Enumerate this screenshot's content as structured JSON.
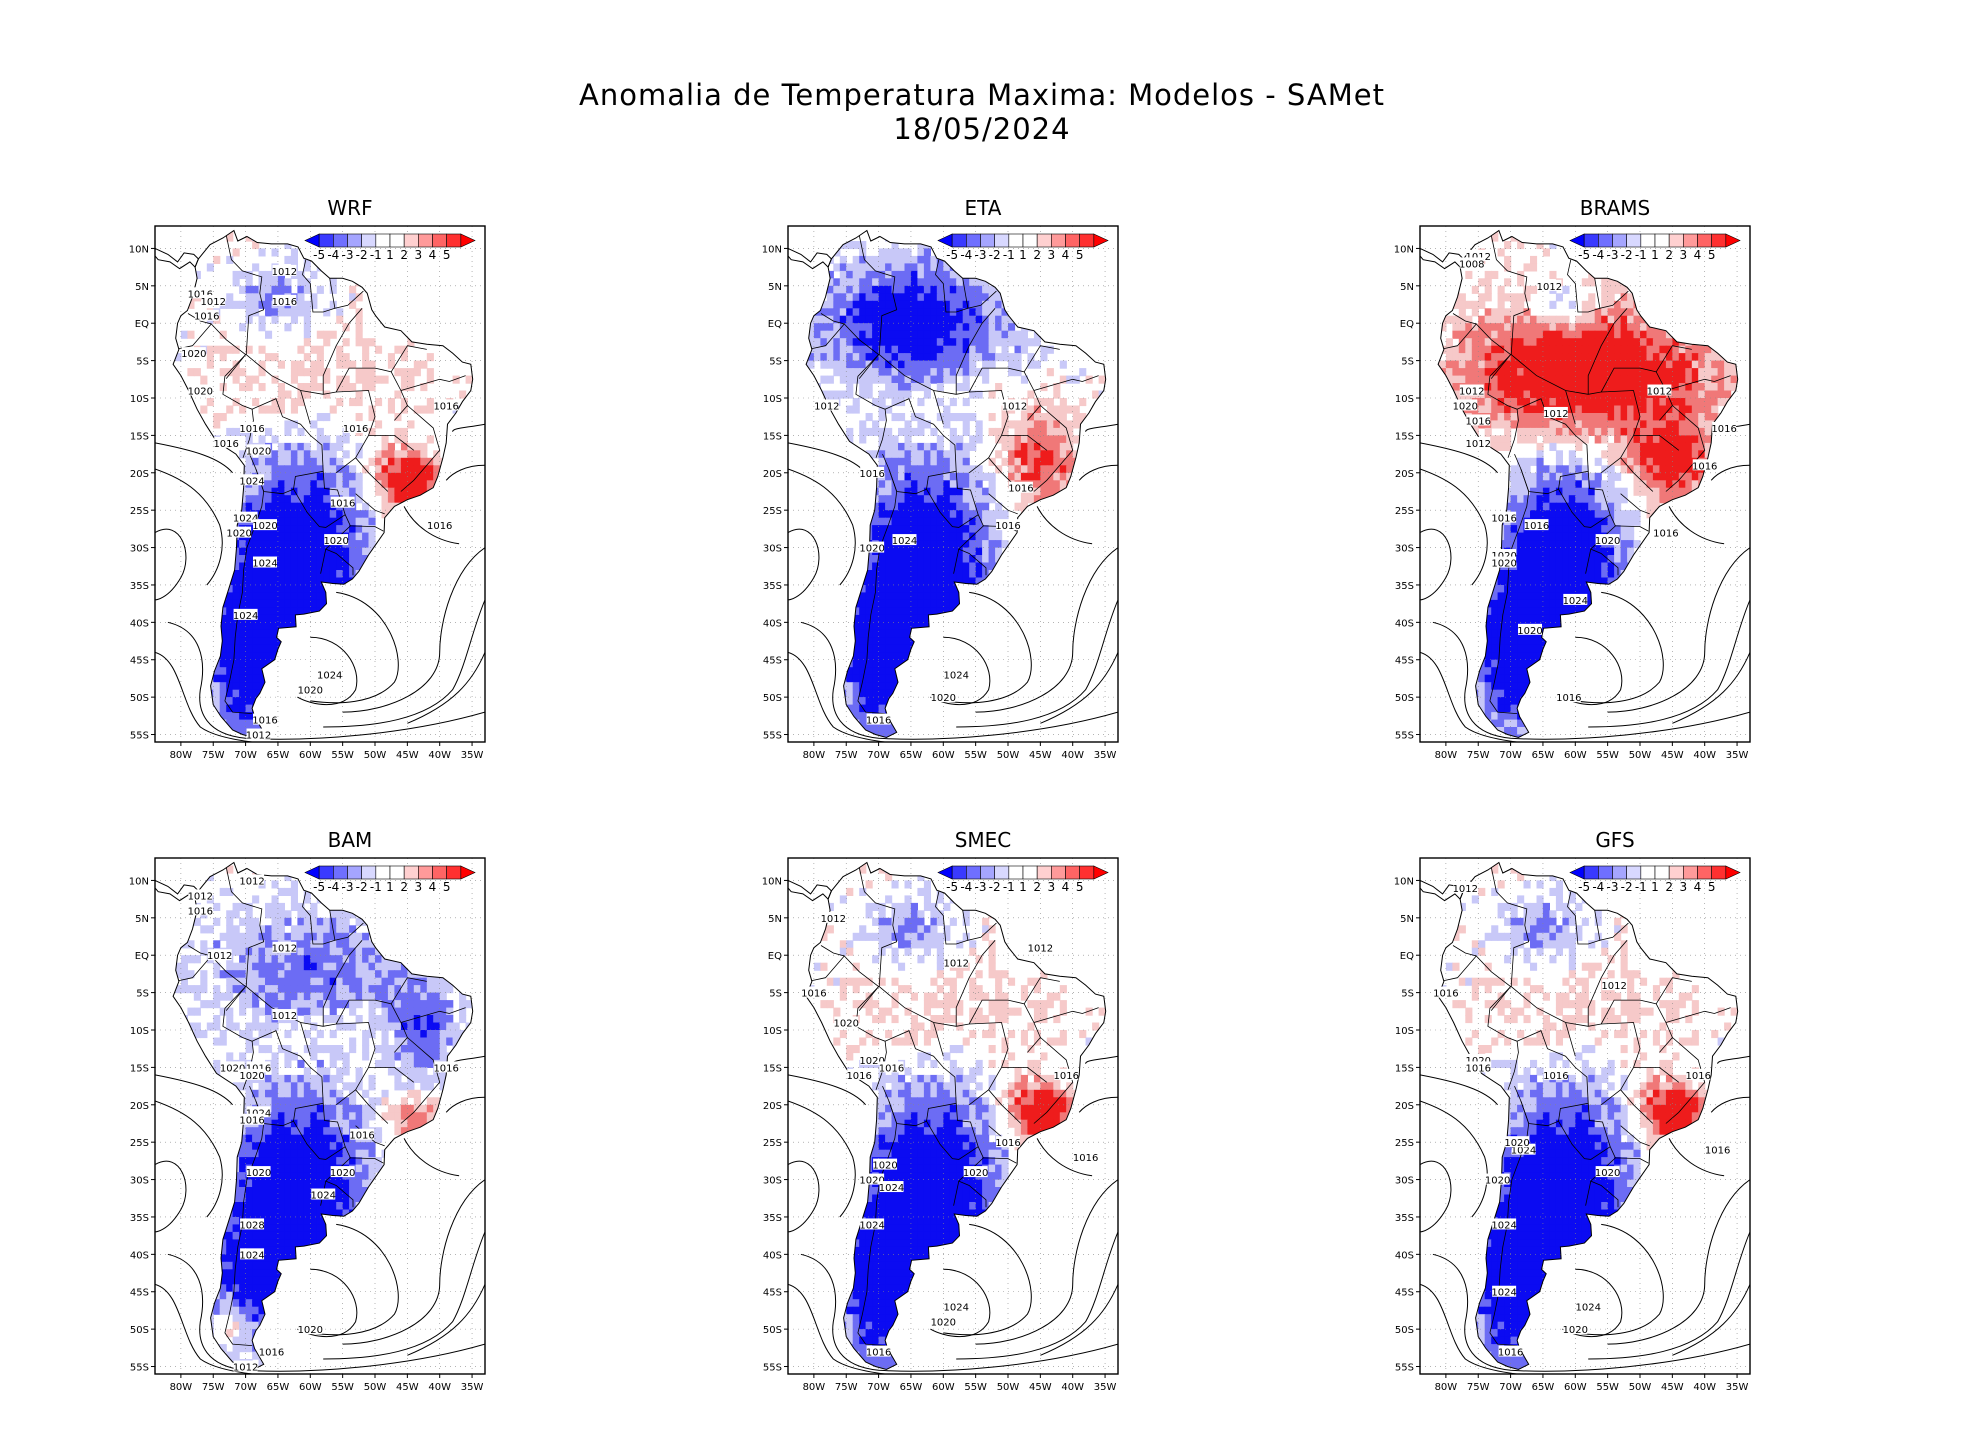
{
  "figure": {
    "title_line1": "Anomalia de Temperatura Maxima: Modelos - SAMet",
    "title_line2": "18/05/2024"
  },
  "axes": {
    "lat_ticks": [
      "10N",
      "5N",
      "EQ",
      "5S",
      "10S",
      "15S",
      "20S",
      "25S",
      "30S",
      "35S",
      "40S",
      "45S",
      "50S",
      "55S"
    ],
    "lon_ticks": [
      "80W",
      "75W",
      "70W",
      "65W",
      "60W",
      "55W",
      "50W",
      "45W",
      "40W",
      "35W"
    ]
  },
  "colorbar": {
    "labels": [
      "-5",
      "-4",
      "-3",
      "-2",
      "-1",
      "1",
      "2",
      "3",
      "4",
      "5"
    ],
    "colors": [
      "#0000ff",
      "#3a3aff",
      "#6f6fff",
      "#a5a5ff",
      "#d8d8ff",
      "#ffffff",
      "#ffffff",
      "#ffd0d0",
      "#ff9a9a",
      "#ff6464",
      "#ff3030",
      "#ff0000"
    ]
  },
  "colors": {
    "cold_strong": "#0b0bf2",
    "cold_mid": "#6c6cf4",
    "cold_light": "#c8c8f8",
    "warm_light": "#f6c9c9",
    "warm_mid": "#f07878",
    "warm_strong": "#ee1c1c"
  },
  "panels": [
    {
      "name": "WRF",
      "pattern": "south-cold-southeast-warm",
      "isobars": [
        {
          "label": "1012",
          "lon": -64,
          "lat": 7
        },
        {
          "label": "1016",
          "lon": -64,
          "lat": 3
        },
        {
          "label": "1016",
          "lon": -77,
          "lat": 4
        },
        {
          "label": "1012",
          "lon": -75,
          "lat": 3
        },
        {
          "label": "1016",
          "lon": -76,
          "lat": 1
        },
        {
          "label": "1020",
          "lon": -78,
          "lat": -4
        },
        {
          "label": "1020",
          "lon": -77,
          "lat": -9
        },
        {
          "label": "1016",
          "lon": -39,
          "lat": -11
        },
        {
          "label": "1016",
          "lon": -53,
          "lat": -14
        },
        {
          "label": "1016",
          "lon": -69,
          "lat": -14
        },
        {
          "label": "1016",
          "lon": -73,
          "lat": -16
        },
        {
          "label": "1020",
          "lon": -68,
          "lat": -17
        },
        {
          "label": "1024",
          "lon": -69,
          "lat": -21
        },
        {
          "label": "1016",
          "lon": -55,
          "lat": -24
        },
        {
          "label": "1016",
          "lon": -40,
          "lat": -27
        },
        {
          "label": "1024",
          "lon": -70,
          "lat": -26
        },
        {
          "label": "1020",
          "lon": -67,
          "lat": -27
        },
        {
          "label": "1020",
          "lon": -71,
          "lat": -28
        },
        {
          "label": "1020",
          "lon": -56,
          "lat": -29
        },
        {
          "label": "1024",
          "lon": -67,
          "lat": -32
        },
        {
          "label": "1024",
          "lon": -70,
          "lat": -39
        },
        {
          "label": "1024",
          "lon": -57,
          "lat": -47
        },
        {
          "label": "1020",
          "lon": -60,
          "lat": -49
        },
        {
          "label": "1016",
          "lon": -67,
          "lat": -53
        },
        {
          "label": "1012",
          "lon": -68,
          "lat": -55
        }
      ]
    },
    {
      "name": "ETA",
      "pattern": "north-cold-south-cold-east-warm",
      "isobars": [
        {
          "label": "1012",
          "lon": -78,
          "lat": -11
        },
        {
          "label": "1012",
          "lon": -49,
          "lat": -11
        },
        {
          "label": "1016",
          "lon": -71,
          "lat": -20
        },
        {
          "label": "1016",
          "lon": -48,
          "lat": -22
        },
        {
          "label": "1016",
          "lon": -50,
          "lat": -27
        },
        {
          "label": "1024",
          "lon": -66,
          "lat": -29
        },
        {
          "label": "1020",
          "lon": -71,
          "lat": -30
        },
        {
          "label": "1024",
          "lon": -58,
          "lat": -47
        },
        {
          "label": "1020",
          "lon": -60,
          "lat": -50
        },
        {
          "label": "1016",
          "lon": -70,
          "lat": -53
        }
      ]
    },
    {
      "name": "BRAMS",
      "pattern": "north-warm-south-cold",
      "isobars": [
        {
          "label": "1012",
          "lon": -75,
          "lat": 9
        },
        {
          "label": "1008",
          "lon": -76,
          "lat": 8
        },
        {
          "label": "1012",
          "lon": -64,
          "lat": 5
        },
        {
          "label": "1012",
          "lon": -76,
          "lat": -9
        },
        {
          "label": "1020",
          "lon": -77,
          "lat": -11
        },
        {
          "label": "1016",
          "lon": -75,
          "lat": -13
        },
        {
          "label": "1012",
          "lon": -63,
          "lat": -12
        },
        {
          "label": "1012",
          "lon": -47,
          "lat": -9
        },
        {
          "label": "1016",
          "lon": -37,
          "lat": -14
        },
        {
          "label": "1012",
          "lon": -75,
          "lat": -16
        },
        {
          "label": "1016",
          "lon": -40,
          "lat": -19
        },
        {
          "label": "1016",
          "lon": -71,
          "lat": -26
        },
        {
          "label": "1016",
          "lon": -66,
          "lat": -27
        },
        {
          "label": "1016",
          "lon": -46,
          "lat": -28
        },
        {
          "label": "1020",
          "lon": -55,
          "lat": -29
        },
        {
          "label": "1020",
          "lon": -71,
          "lat": -31
        },
        {
          "label": "1020",
          "lon": -71,
          "lat": -32
        },
        {
          "label": "1024",
          "lon": -60,
          "lat": -37
        },
        {
          "label": "1020",
          "lon": -67,
          "lat": -41
        },
        {
          "label": "1016",
          "lon": -61,
          "lat": -50
        }
      ]
    },
    {
      "name": "BAM",
      "pattern": "mixed-north-cold-south-cold",
      "isobars": [
        {
          "label": "1012",
          "lon": -69,
          "lat": 10
        },
        {
          "label": "1012",
          "lon": -77,
          "lat": 8
        },
        {
          "label": "1016",
          "lon": -77,
          "lat": 6
        },
        {
          "label": "1012",
          "lon": -64,
          "lat": 1
        },
        {
          "label": "1012",
          "lon": -74,
          "lat": 0
        },
        {
          "label": "1012",
          "lon": -64,
          "lat": -8
        },
        {
          "label": "1016",
          "lon": -68,
          "lat": -15
        },
        {
          "label": "1020",
          "lon": -72,
          "lat": -15
        },
        {
          "label": "1020",
          "lon": -69,
          "lat": -16
        },
        {
          "label": "1016",
          "lon": -39,
          "lat": -15
        },
        {
          "label": "1024",
          "lon": -68,
          "lat": -21
        },
        {
          "label": "1016",
          "lon": -69,
          "lat": -22
        },
        {
          "label": "1016",
          "lon": -52,
          "lat": -24
        },
        {
          "label": "1020",
          "lon": -68,
          "lat": -29
        },
        {
          "label": "1020",
          "lon": -55,
          "lat": -29
        },
        {
          "label": "1024",
          "lon": -58,
          "lat": -32
        },
        {
          "label": "1028",
          "lon": -69,
          "lat": -36
        },
        {
          "label": "1024",
          "lon": -69,
          "lat": -40
        },
        {
          "label": "1020",
          "lon": -60,
          "lat": -50
        },
        {
          "label": "1016",
          "lon": -66,
          "lat": -53
        },
        {
          "label": "1012",
          "lon": -70,
          "lat": -55
        }
      ]
    },
    {
      "name": "SMEC",
      "pattern": "south-cold-southeast-warm",
      "isobars": [
        {
          "label": "1012",
          "lon": -77,
          "lat": 5
        },
        {
          "label": "1012",
          "lon": -45,
          "lat": 1
        },
        {
          "label": "1012",
          "lon": -58,
          "lat": -1
        },
        {
          "label": "1016",
          "lon": -80,
          "lat": -5
        },
        {
          "label": "1020",
          "lon": -75,
          "lat": -9
        },
        {
          "label": "1020",
          "lon": -71,
          "lat": -14
        },
        {
          "label": "1016",
          "lon": -68,
          "lat": -15
        },
        {
          "label": "1016",
          "lon": -73,
          "lat": -16
        },
        {
          "label": "1016",
          "lon": -41,
          "lat": -16
        },
        {
          "label": "1016",
          "lon": -50,
          "lat": -25
        },
        {
          "label": "1016",
          "lon": -38,
          "lat": -27
        },
        {
          "label": "1020",
          "lon": -69,
          "lat": -28
        },
        {
          "label": "1020",
          "lon": -71,
          "lat": -30
        },
        {
          "label": "1024",
          "lon": -68,
          "lat": -31
        },
        {
          "label": "1020",
          "lon": -55,
          "lat": -29
        },
        {
          "label": "1024",
          "lon": -71,
          "lat": -36
        },
        {
          "label": "1024",
          "lon": -58,
          "lat": -47
        },
        {
          "label": "1020",
          "lon": -60,
          "lat": -49
        },
        {
          "label": "1016",
          "lon": -70,
          "lat": -53
        }
      ]
    },
    {
      "name": "GFS",
      "pattern": "south-cold-southeast-warm",
      "isobars": [
        {
          "label": "1012",
          "lon": -77,
          "lat": 9
        },
        {
          "label": "1012",
          "lon": -54,
          "lat": -4
        },
        {
          "label": "1016",
          "lon": -80,
          "lat": -5
        },
        {
          "label": "1020",
          "lon": -75,
          "lat": -14
        },
        {
          "label": "1016",
          "lon": -75,
          "lat": -15
        },
        {
          "label": "1016",
          "lon": -63,
          "lat": -16
        },
        {
          "label": "1016",
          "lon": -41,
          "lat": -16
        },
        {
          "label": "1016",
          "lon": -38,
          "lat": -26
        },
        {
          "label": "1024",
          "lon": -68,
          "lat": -26
        },
        {
          "label": "1020",
          "lon": -69,
          "lat": -25
        },
        {
          "label": "1020",
          "lon": -55,
          "lat": -29
        },
        {
          "label": "1020",
          "lon": -72,
          "lat": -30
        },
        {
          "label": "1024",
          "lon": -71,
          "lat": -36
        },
        {
          "label": "1024",
          "lon": -71,
          "lat": -45
        },
        {
          "label": "1024",
          "lon": -58,
          "lat": -47
        },
        {
          "label": "1020",
          "lon": -60,
          "lat": -50
        },
        {
          "label": "1016",
          "lon": -70,
          "lat": -53
        }
      ]
    }
  ]
}
